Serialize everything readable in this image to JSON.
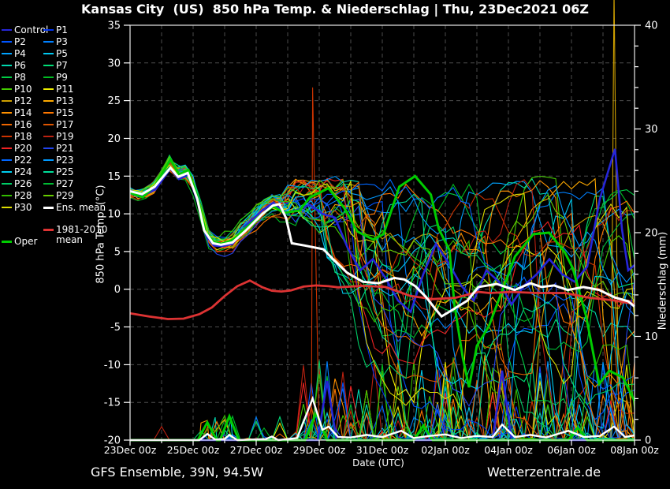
{
  "title": "Kansas City  (US)  850 hPa Temp. & Niederschlag | Thu, 23Dec2021 06Z",
  "footer": {
    "left": "GFS Ensemble, 39N, 94.5W",
    "right": "Wetterzentrale.de"
  },
  "legend": {
    "ens_mean_label": "Ens. mean",
    "ens_mean_color": "#ffffff",
    "climate_label_line1": "1981-2010",
    "climate_label_line2": "mean",
    "climate_color": "#dd3333",
    "oper_label": "Oper",
    "oper_color": "#00cc00"
  },
  "axes": {
    "left": {
      "label": "850 hPa Temp. (°C)",
      "ticks": [
        35,
        30,
        25,
        20,
        15,
        10,
        5,
        0,
        -5,
        -10,
        -15,
        -20
      ]
    },
    "right": {
      "label": "Niederschlag (mm)",
      "ticks": [
        40,
        30,
        20,
        10,
        0
      ],
      "minor_step_mm": 2
    },
    "x": {
      "title": "Date (UTC)",
      "labels": [
        "23Dec 00z",
        "25Dec 00z",
        "27Dec 00z",
        "29Dec 00z",
        "31Dec 00z",
        "02Jan 00z",
        "04Jan 00z",
        "06Jan 00z",
        "08Jan 00z"
      ]
    }
  },
  "chart_data": {
    "type": "line",
    "x_unit": "days since 23Dec2021 00z",
    "x_range_days": [
      0,
      16
    ],
    "temp_axis_c": [
      -20,
      35
    ],
    "precip_axis_mm": [
      0,
      40
    ],
    "grid": {
      "vertical_every_days": 1,
      "horizontal_every_c": 5,
      "style": "dashed"
    },
    "members": [
      {
        "name": "Control",
        "color": "#2626d8"
      },
      {
        "name": "P1",
        "color": "#0033ee"
      },
      {
        "name": "P2",
        "color": "#0055ff"
      },
      {
        "name": "P3",
        "color": "#0080ff"
      },
      {
        "name": "P4",
        "color": "#00a2ff"
      },
      {
        "name": "P5",
        "color": "#00c8f0"
      },
      {
        "name": "P6",
        "color": "#00d8b0"
      },
      {
        "name": "P7",
        "color": "#00dd77"
      },
      {
        "name": "P8",
        "color": "#00cc44"
      },
      {
        "name": "P9",
        "color": "#00bb22"
      },
      {
        "name": "P10",
        "color": "#44cc00"
      },
      {
        "name": "P11",
        "color": "#eeee00"
      },
      {
        "name": "P12",
        "color": "#cfa000"
      },
      {
        "name": "P13",
        "color": "#ffaa00"
      },
      {
        "name": "P14",
        "color": "#ff9100"
      },
      {
        "name": "P15",
        "color": "#ff7700"
      },
      {
        "name": "P16",
        "color": "#ee6600"
      },
      {
        "name": "P17",
        "color": "#dd5500"
      },
      {
        "name": "P18",
        "color": "#cc3300"
      },
      {
        "name": "P19",
        "color": "#bb2211"
      },
      {
        "name": "P20",
        "color": "#ee2222"
      },
      {
        "name": "P21",
        "color": "#2244ee"
      },
      {
        "name": "P22",
        "color": "#0066ff"
      },
      {
        "name": "P23",
        "color": "#0099ff"
      },
      {
        "name": "P24",
        "color": "#00ccee"
      },
      {
        "name": "P25",
        "color": "#00dd99"
      },
      {
        "name": "P26",
        "color": "#00cc66"
      },
      {
        "name": "P27",
        "color": "#00bb33"
      },
      {
        "name": "P28",
        "color": "#33bb00"
      },
      {
        "name": "P29",
        "color": "#66cc00"
      },
      {
        "name": "P30",
        "color": "#dddd00"
      }
    ],
    "series": {
      "ens_mean_temp": [
        [
          0,
          13
        ],
        [
          0.38,
          12.6
        ],
        [
          0.78,
          13.6
        ],
        [
          1.28,
          16.1
        ],
        [
          1.53,
          14.9
        ],
        [
          1.83,
          15.4
        ],
        [
          2.13,
          12
        ],
        [
          2.35,
          7.8
        ],
        [
          2.63,
          6.1
        ],
        [
          2.88,
          5.9
        ],
        [
          3.25,
          6.2
        ],
        [
          3.7,
          7.9
        ],
        [
          4.2,
          10
        ],
        [
          4.53,
          11.1
        ],
        [
          4.74,
          11.3
        ],
        [
          4.95,
          9.4
        ],
        [
          5.13,
          6.1
        ],
        [
          5.54,
          5.8
        ],
        [
          6.13,
          5.3
        ],
        [
          6.46,
          3.9
        ],
        [
          6.88,
          2.2
        ],
        [
          7.38,
          1.0
        ],
        [
          7.88,
          0.8
        ],
        [
          8.38,
          1.5
        ],
        [
          8.7,
          1.3
        ],
        [
          9.05,
          0.4
        ],
        [
          9.38,
          -1.0
        ],
        [
          9.7,
          -2.7
        ],
        [
          9.88,
          -3.6
        ],
        [
          10.2,
          -2.8
        ],
        [
          10.7,
          -1.5
        ],
        [
          11.05,
          0.3
        ],
        [
          11.63,
          0.7
        ],
        [
          12.2,
          -0.1
        ],
        [
          12.7,
          0.8
        ],
        [
          13.05,
          0.3
        ],
        [
          13.45,
          0.5
        ],
        [
          13.88,
          -0.1
        ],
        [
          14.38,
          0.3
        ],
        [
          14.88,
          -0.1
        ],
        [
          15.38,
          -1.1
        ],
        [
          15.8,
          -1.6
        ],
        [
          16,
          -2.3
        ]
      ],
      "climate_mean_temp": [
        [
          0,
          -3.2
        ],
        [
          0.6,
          -3.6
        ],
        [
          1.2,
          -3.95
        ],
        [
          1.7,
          -3.9
        ],
        [
          2.2,
          -3.3
        ],
        [
          2.6,
          -2.4
        ],
        [
          3.0,
          -0.9
        ],
        [
          3.4,
          0.4
        ],
        [
          3.8,
          1.15
        ],
        [
          4.2,
          0.25
        ],
        [
          4.5,
          -0.2
        ],
        [
          4.8,
          -0.3
        ],
        [
          5.1,
          -0.15
        ],
        [
          5.5,
          0.35
        ],
        [
          5.9,
          0.5
        ],
        [
          6.3,
          0.4
        ],
        [
          6.6,
          0.25
        ],
        [
          7.4,
          0.45
        ],
        [
          8.1,
          0.3
        ],
        [
          8.9,
          -0.9
        ],
        [
          9.6,
          -1.3
        ],
        [
          10.3,
          -1.15
        ],
        [
          11.05,
          -0.35
        ],
        [
          11.4,
          -0.5
        ],
        [
          12.1,
          -0.35
        ],
        [
          12.9,
          -0.5
        ],
        [
          13.8,
          -0.5
        ],
        [
          14.6,
          -1.15
        ],
        [
          15.3,
          -1.45
        ],
        [
          16,
          -1.95
        ]
      ],
      "oper_temp": [
        [
          0,
          12.8
        ],
        [
          0.4,
          12.2
        ],
        [
          0.8,
          13.8
        ],
        [
          1.28,
          17.2
        ],
        [
          1.55,
          15.2
        ],
        [
          1.85,
          15.8
        ],
        [
          2.15,
          12.0
        ],
        [
          2.4,
          7.6
        ],
        [
          2.65,
          6.2
        ],
        [
          2.9,
          6.0
        ],
        [
          3.25,
          6.5
        ],
        [
          3.7,
          8.2
        ],
        [
          4.2,
          10.0
        ],
        [
          4.55,
          11.0
        ],
        [
          4.88,
          10.1
        ],
        [
          5.38,
          10.45
        ],
        [
          5.71,
          12.2
        ],
        [
          6.29,
          13.4
        ],
        [
          6.79,
          10.8
        ],
        [
          7.21,
          7.65
        ],
        [
          7.71,
          6.6
        ],
        [
          8.04,
          7.3
        ],
        [
          8.54,
          13.6
        ],
        [
          9.04,
          15.0
        ],
        [
          9.54,
          12.55
        ],
        [
          9.79,
          8.0
        ],
        [
          10.13,
          5.2
        ],
        [
          10.29,
          -2.1
        ],
        [
          10.55,
          -9.0
        ],
        [
          10.75,
          -13.0
        ],
        [
          11.0,
          -7.5
        ],
        [
          11.38,
          -4.9
        ],
        [
          12.21,
          4.35
        ],
        [
          12.79,
          7.3
        ],
        [
          13.29,
          7.5
        ],
        [
          13.79,
          4.9
        ],
        [
          14.04,
          2.8
        ],
        [
          14.46,
          -3.5
        ],
        [
          14.88,
          -12.55
        ],
        [
          15.2,
          -10.8
        ],
        [
          15.63,
          -11.7
        ],
        [
          16,
          -14.8
        ]
      ],
      "control_temp": [
        [
          0,
          13.1
        ],
        [
          0.4,
          12.4
        ],
        [
          0.8,
          13.2
        ],
        [
          1.28,
          16.0
        ],
        [
          1.55,
          14.6
        ],
        [
          1.85,
          15.2
        ],
        [
          2.15,
          11.5
        ],
        [
          2.4,
          7.2
        ],
        [
          2.65,
          5.8
        ],
        [
          2.9,
          5.7
        ],
        [
          3.25,
          6.0
        ],
        [
          3.7,
          8.5
        ],
        [
          4.2,
          10.5
        ],
        [
          4.55,
          11.5
        ],
        [
          4.9,
          10.0
        ],
        [
          5.3,
          10.5
        ],
        [
          5.7,
          11.2
        ],
        [
          6.1,
          10.0
        ],
        [
          6.5,
          9.5
        ],
        [
          6.9,
          5.5
        ],
        [
          7.3,
          2.5
        ],
        [
          7.7,
          4.0
        ],
        [
          8.1,
          1.5
        ],
        [
          8.5,
          -1.5
        ],
        [
          8.9,
          -3.0
        ],
        [
          9.3,
          2.0
        ],
        [
          9.7,
          6.0
        ],
        [
          10.1,
          3.5
        ],
        [
          10.5,
          0.5
        ],
        [
          10.9,
          -1.5
        ],
        [
          11.3,
          2.5
        ],
        [
          11.7,
          1.0
        ],
        [
          12.1,
          -2.0
        ],
        [
          12.5,
          0.5
        ],
        [
          12.9,
          2.0
        ],
        [
          13.3,
          4.0
        ],
        [
          13.7,
          2.0
        ],
        [
          14.1,
          1.0
        ],
        [
          14.5,
          3.0
        ],
        [
          14.9,
          12.0
        ],
        [
          15.38,
          18.6
        ],
        [
          15.6,
          8.0
        ],
        [
          15.8,
          2.5
        ],
        [
          16,
          3.2
        ]
      ],
      "ens_mean_precip": [
        [
          0,
          0
        ],
        [
          2.2,
          0
        ],
        [
          2.45,
          0.6
        ],
        [
          2.7,
          0.05
        ],
        [
          3.0,
          0.1
        ],
        [
          3.15,
          0.5
        ],
        [
          3.4,
          0
        ],
        [
          4.3,
          0.1
        ],
        [
          4.5,
          0.35
        ],
        [
          4.7,
          0
        ],
        [
          5.3,
          0.2
        ],
        [
          5.79,
          4.0
        ],
        [
          6.1,
          1.0
        ],
        [
          6.3,
          1.3
        ],
        [
          6.6,
          0.3
        ],
        [
          7.0,
          0.25
        ],
        [
          7.5,
          0.5
        ],
        [
          8.0,
          0.3
        ],
        [
          8.6,
          0.9
        ],
        [
          9.0,
          0.2
        ],
        [
          9.5,
          0.4
        ],
        [
          10.0,
          0.55
        ],
        [
          10.5,
          0.2
        ],
        [
          11.0,
          0.4
        ],
        [
          11.5,
          0.3
        ],
        [
          11.8,
          1.5
        ],
        [
          12.2,
          0.3
        ],
        [
          12.7,
          0.5
        ],
        [
          13.2,
          0.25
        ],
        [
          13.9,
          0.9
        ],
        [
          14.4,
          0.3
        ],
        [
          14.9,
          0.4
        ],
        [
          15.35,
          1.3
        ],
        [
          15.7,
          0.3
        ],
        [
          16,
          0.45
        ]
      ]
    },
    "bundle_early_temp": [
      [
        0,
        12.8
      ],
      [
        0.4,
        12.3
      ],
      [
        0.8,
        13.6
      ],
      [
        1.28,
        16.8
      ],
      [
        1.55,
        15.0
      ],
      [
        1.85,
        15.6
      ],
      [
        2.15,
        12.3
      ],
      [
        2.4,
        7.5
      ],
      [
        2.65,
        6.0
      ],
      [
        2.9,
        5.9
      ],
      [
        3.25,
        6.3
      ],
      [
        3.7,
        8.0
      ],
      [
        4.2,
        10.2
      ],
      [
        4.55,
        11.2
      ],
      [
        4.75,
        11.0
      ]
    ],
    "envelope_temp": {
      "days": [
        0,
        1.28,
        2,
        2.65,
        3.3,
        4.7,
        5.5,
        6,
        6.5,
        7,
        7.5,
        8,
        8.5,
        9,
        10,
        11,
        12,
        13,
        14,
        14.6,
        15,
        15.5,
        16
      ],
      "max": [
        14,
        18.5,
        15.5,
        8.5,
        9,
        15,
        14.5,
        14.5,
        15,
        14.5,
        14,
        14.2,
        15,
        15,
        14,
        14.5,
        14.2,
        15,
        14.5,
        16,
        14.5,
        13.5,
        13
      ],
      "min": [
        11.5,
        15,
        11,
        4,
        4,
        8,
        2,
        0,
        -3,
        -8,
        -13,
        -17,
        -20,
        -20,
        -20,
        -20,
        -20,
        -20,
        -20,
        -20,
        -20,
        -20,
        -20
      ]
    },
    "precip_events": [
      {
        "member": "P18",
        "day": 5.79,
        "peak_mm": 34,
        "half_width_days": 0.28
      },
      {
        "member": "P12",
        "day": 15.35,
        "peak_mm": 43.5,
        "half_width_days": 0.42
      },
      {
        "member": "Control",
        "day": 6.25,
        "peak_mm": 5.7,
        "half_width_days": 0.3
      },
      {
        "member": "Control",
        "day": 11.8,
        "peak_mm": 6.7,
        "half_width_days": 0.3
      },
      {
        "member": "P6",
        "day": 2.7,
        "peak_mm": 2.2,
        "half_width_days": 0.25
      },
      {
        "member": "P14",
        "day": 2.45,
        "peak_mm": 1.9,
        "half_width_days": 0.25
      },
      {
        "member": "P24",
        "day": 3.2,
        "peak_mm": 2.0,
        "half_width_days": 0.25
      },
      {
        "member": "Oper",
        "day": 2.45,
        "peak_mm": 1.7,
        "half_width_days": 0.3
      },
      {
        "member": "Oper",
        "day": 3.15,
        "peak_mm": 2.3,
        "half_width_days": 0.3
      },
      {
        "member": "Oper",
        "day": 5.9,
        "peak_mm": 2.6,
        "half_width_days": 0.35
      },
      {
        "member": "Oper",
        "day": 9.3,
        "peak_mm": 1.4,
        "half_width_days": 0.3
      },
      {
        "member": "Oper",
        "day": 14.2,
        "peak_mm": 1.2,
        "half_width_days": 0.3
      }
    ]
  }
}
